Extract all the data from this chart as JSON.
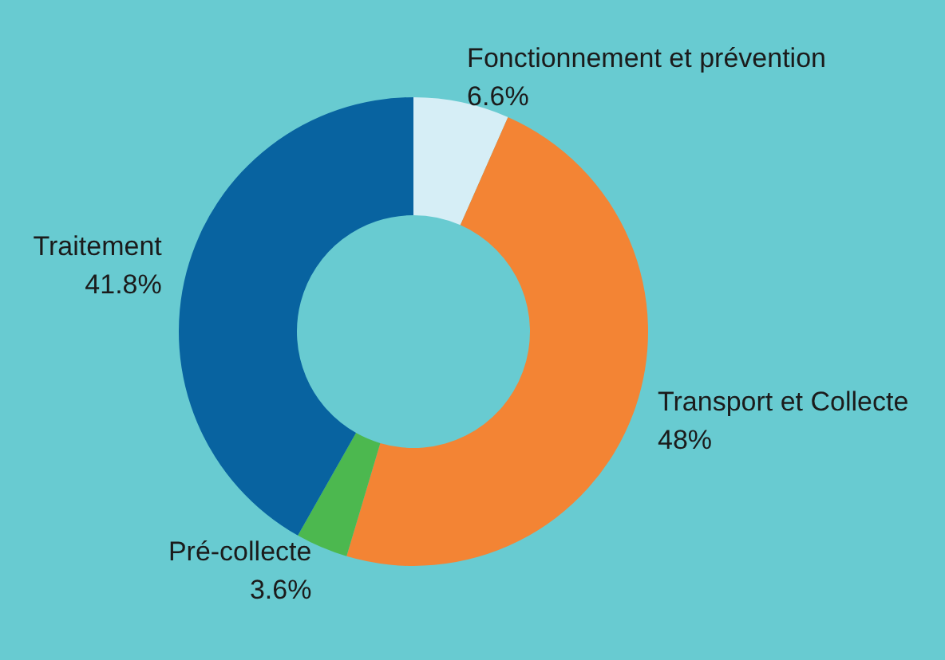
{
  "chart_data": {
    "type": "donut",
    "categories": [
      "Fonctionnement et prévention",
      "Transport et Collecte",
      "Pré-collecte",
      "Traitement"
    ],
    "values": [
      6.6,
      48,
      3.6,
      41.8
    ],
    "colors": [
      "#d6eef6",
      "#f38434",
      "#4cb84f",
      "#0863a0"
    ],
    "value_labels": [
      "6.6%",
      "48%",
      "3.6%",
      "41.8%"
    ],
    "legend": false
  }
}
